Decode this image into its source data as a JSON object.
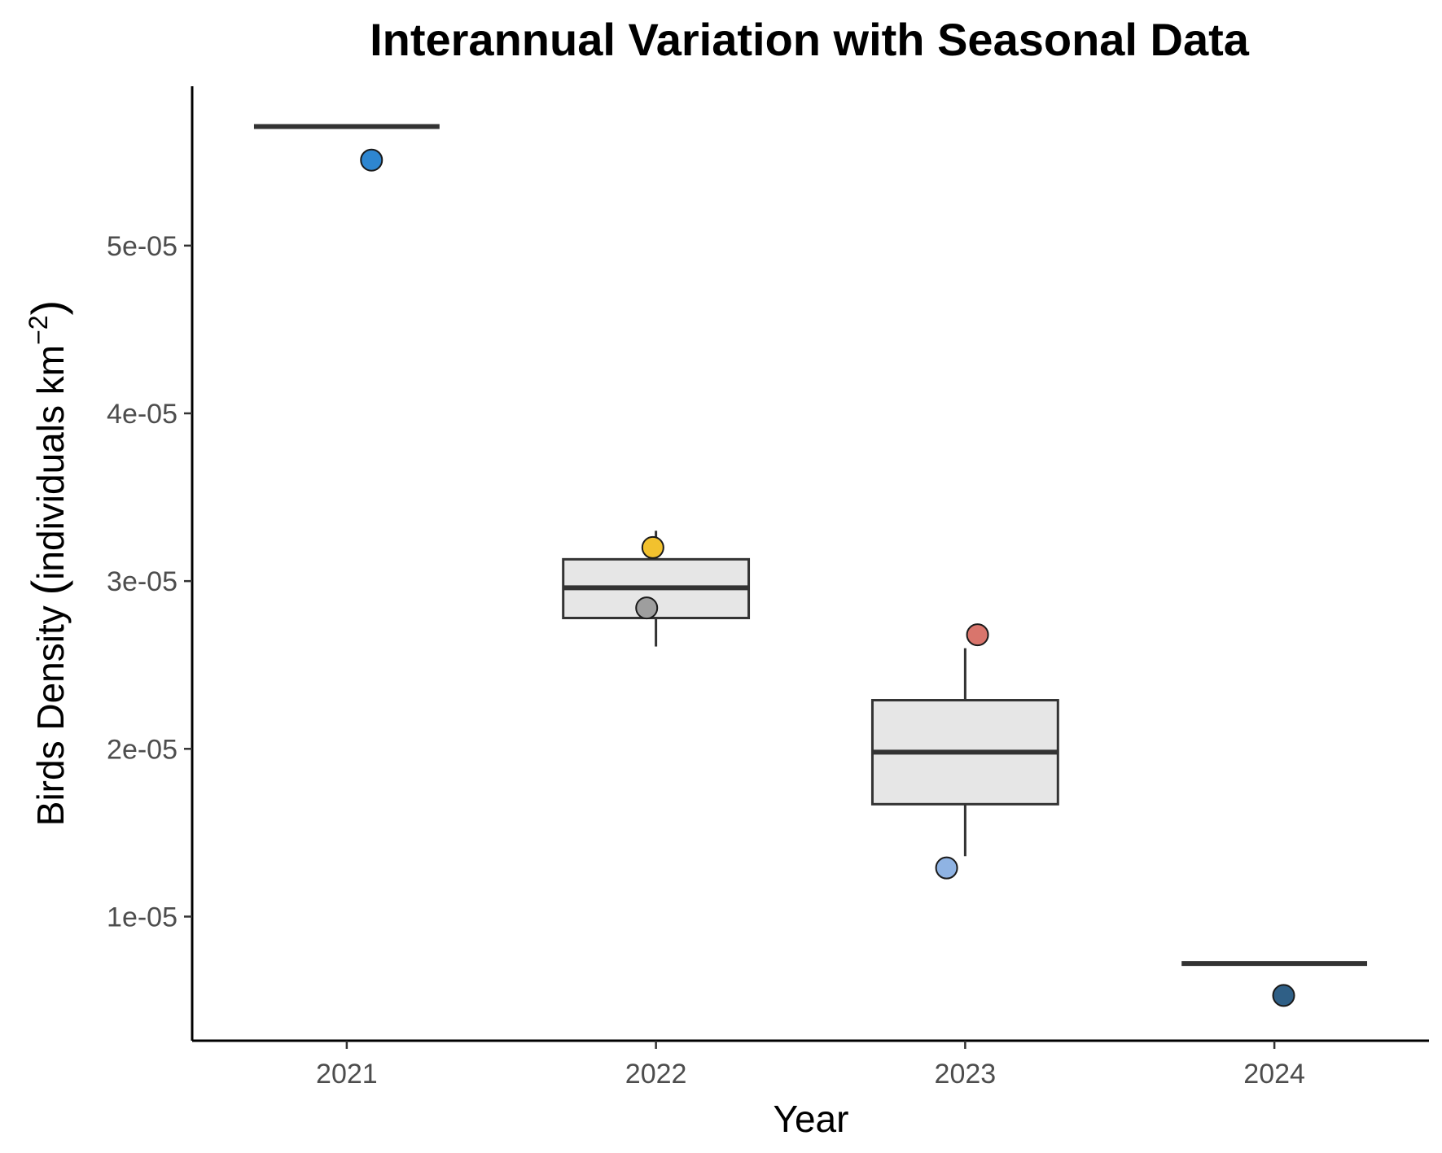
{
  "chart_data": {
    "type": "box",
    "title": "Interannual Variation with Seasonal Data",
    "xlabel": "Year",
    "ylabel": {
      "prefix": "Birds Density ",
      "inner": "individuals km",
      "superscript": "−2"
    },
    "categories": [
      "2021",
      "2022",
      "2023",
      "2024"
    ],
    "ylim": [
      2.6e-06,
      5.95e-05
    ],
    "yticks": [
      {
        "value": 1e-05,
        "label": "1e-05"
      },
      {
        "value": 2e-05,
        "label": "2e-05"
      },
      {
        "value": 3e-05,
        "label": "3e-05"
      },
      {
        "value": 4e-05,
        "label": "4e-05"
      },
      {
        "value": 5e-05,
        "label": "5e-05"
      }
    ],
    "boxes": [
      {
        "category": "2021",
        "q1": 5.71e-05,
        "median": 5.71e-05,
        "q3": 5.71e-05,
        "whisker_low": 5.71e-05,
        "whisker_high": 5.71e-05
      },
      {
        "category": "2022",
        "q1": 2.78e-05,
        "median": 2.96e-05,
        "q3": 3.13e-05,
        "whisker_low": 2.61e-05,
        "whisker_high": 3.3e-05
      },
      {
        "category": "2023",
        "q1": 1.67e-05,
        "median": 1.98e-05,
        "q3": 2.29e-05,
        "whisker_low": 1.36e-05,
        "whisker_high": 2.6e-05
      },
      {
        "category": "2024",
        "q1": 7.2e-06,
        "median": 7.2e-06,
        "q3": 7.2e-06,
        "whisker_low": 7.2e-06,
        "whisker_high": 7.2e-06
      }
    ],
    "points": [
      {
        "category": "2021",
        "offset": 0.08,
        "y": 5.51e-05,
        "color": "#2e86d0"
      },
      {
        "category": "2022",
        "offset": -0.01,
        "y": 3.2e-05,
        "color": "#f2c12e"
      },
      {
        "category": "2022",
        "offset": -0.03,
        "y": 2.84e-05,
        "color": "#9e9e9e"
      },
      {
        "category": "2023",
        "offset": 0.04,
        "y": 2.68e-05,
        "color": "#d9756c"
      },
      {
        "category": "2023",
        "offset": -0.06,
        "y": 1.29e-05,
        "color": "#8fb3e3"
      },
      {
        "category": "2024",
        "offset": 0.03,
        "y": 5.3e-06,
        "color": "#2f5f86"
      }
    ],
    "box_fill": "#e6e6e6",
    "box_stroke": "#333333",
    "legend": "none",
    "grid": false
  }
}
